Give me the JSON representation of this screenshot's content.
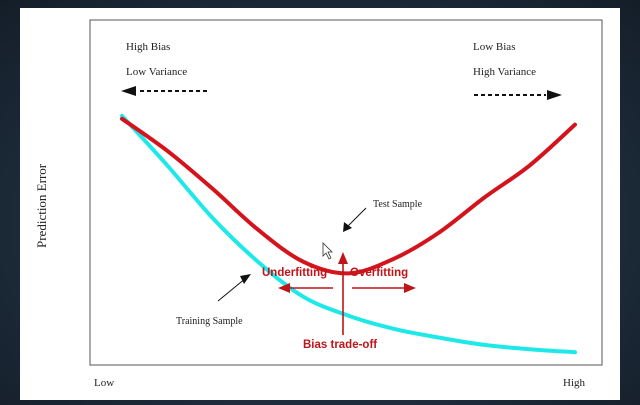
{
  "chart_data": {
    "type": "line",
    "title": "",
    "xlabel": "",
    "ylabel": "Prediction Error",
    "x_tick_labels": [
      "Low",
      "High"
    ],
    "grid": false,
    "series": [
      {
        "name": "Test Sample",
        "color": "#d3141c",
        "x": [
          0.0,
          0.1,
          0.2,
          0.3,
          0.4,
          0.5,
          0.6,
          0.7,
          0.8,
          0.9,
          1.0
        ],
        "y": [
          0.82,
          0.71,
          0.58,
          0.44,
          0.33,
          0.29,
          0.34,
          0.43,
          0.55,
          0.66,
          0.8
        ]
      },
      {
        "name": "Training Sample",
        "color": "#1ee8e8",
        "x": [
          0.0,
          0.1,
          0.2,
          0.3,
          0.4,
          0.5,
          0.6,
          0.7,
          0.8,
          0.9,
          1.0
        ],
        "y": [
          0.83,
          0.66,
          0.48,
          0.33,
          0.21,
          0.145,
          0.1,
          0.07,
          0.045,
          0.03,
          0.02
        ]
      }
    ]
  },
  "annotations": {
    "left_top": "High Bias",
    "left_bottom": "Low Variance",
    "right_top": "Low Bias",
    "right_bottom": "High Variance",
    "test_label": "Test Sample",
    "training_label": "Training Sample",
    "underfitting": "Underfitting",
    "overfitting": "Overfitting",
    "tradeoff": "Bias trade-off",
    "accent_color": "#c01418"
  }
}
